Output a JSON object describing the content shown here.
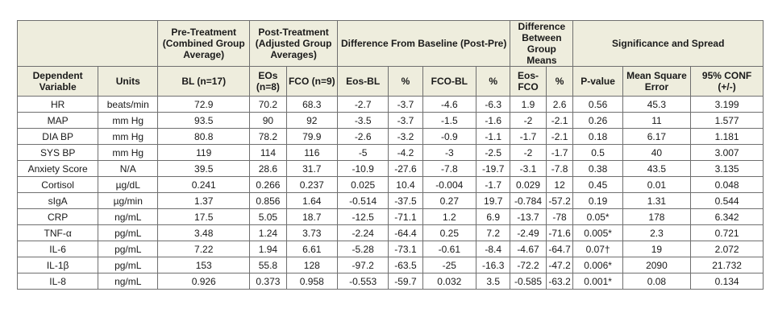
{
  "groups": {
    "pre": "Pre-Treatment (Combined Group Average)",
    "post": "Post-Treatment (Adjusted Group Averages)",
    "diff_baseline": "Difference From Baseline (Post-Pre)",
    "diff_groups": "Difference Between Group Means",
    "significance": "Significance and Spread"
  },
  "columns": {
    "variable": "Dependent Variable",
    "units": "Units",
    "bl": "BL  (n=17)",
    "eos": "EOs (n=8)",
    "fco": "FCO (n=9)",
    "eos_bl": "Eos-BL",
    "pct1": "%",
    "fco_bl": "FCO-BL",
    "pct2": "%",
    "eos_fco": "Eos-FCO",
    "pct3": "%",
    "pvalue": "P-value",
    "mse": "Mean Square Error",
    "conf": "95% CONF (+/-)"
  },
  "rows": [
    [
      "HR",
      "beats/min",
      "72.9",
      "70.2",
      "68.3",
      "-2.7",
      "-3.7",
      "-4.6",
      "-6.3",
      "1.9",
      "2.6",
      "0.56",
      "45.3",
      "3.199"
    ],
    [
      "MAP",
      "mm Hg",
      "93.5",
      "90",
      "92",
      "-3.5",
      "-3.7",
      "-1.5",
      "-1.6",
      "-2",
      "-2.1",
      "0.26",
      "11",
      "1.577"
    ],
    [
      "DIA BP",
      "mm Hg",
      "80.8",
      "78.2",
      "79.9",
      "-2.6",
      "-3.2",
      "-0.9",
      "-1.1",
      "-1.7",
      "-2.1",
      "0.18",
      "6.17",
      "1.181"
    ],
    [
      "SYS BP",
      "mm Hg",
      "119",
      "114",
      "116",
      "-5",
      "-4.2",
      "-3",
      "-2.5",
      "-2",
      "-1.7",
      "0.5",
      "40",
      "3.007"
    ],
    [
      "Anxiety Score",
      "N/A",
      "39.5",
      "28.6",
      "31.7",
      "-10.9",
      "-27.6",
      "-7.8",
      "-19.7",
      "-3.1",
      "-7.8",
      "0.38",
      "43.5",
      "3.135"
    ],
    [
      "Cortisol",
      "µg/dL",
      "0.241",
      "0.266",
      "0.237",
      "0.025",
      "10.4",
      "-0.004",
      "-1.7",
      "0.029",
      "12",
      "0.45",
      "0.01",
      "0.048"
    ],
    [
      "sIgA",
      "µg/min",
      "1.37",
      "0.856",
      "1.64",
      "-0.514",
      "-37.5",
      "0.27",
      "19.7",
      "-0.784",
      "-57.2",
      "0.19",
      "1.31",
      "0.544"
    ],
    [
      "CRP",
      "ng/mL",
      "17.5",
      "5.05",
      "18.7",
      "-12.5",
      "-71.1",
      "1.2",
      "6.9",
      "-13.7",
      "-78",
      "0.05*",
      "178",
      "6.342"
    ],
    [
      "TNF-α",
      "pg/mL",
      "3.48",
      "1.24",
      "3.73",
      "-2.24",
      "-64.4",
      "0.25",
      "7.2",
      "-2.49",
      "-71.6",
      "0.005*",
      "2.3",
      "0.721"
    ],
    [
      "IL-6",
      "pg/mL",
      "7.22",
      "1.94",
      "6.61",
      "-5.28",
      "-73.1",
      "-0.61",
      "-8.4",
      "-4.67",
      "-64.7",
      "0.07†",
      "19",
      "2.072"
    ],
    [
      "IL-1β",
      "pg/mL",
      "153",
      "55.8",
      "128",
      "-97.2",
      "-63.5",
      "-25",
      "-16.3",
      "-72.2",
      "-47.2",
      "0.006*",
      "2090",
      "21.732"
    ],
    [
      "IL-8",
      "ng/mL",
      "0.926",
      "0.373",
      "0.958",
      "-0.553",
      "-59.7",
      "0.032",
      "3.5",
      "-0.585",
      "-63.2",
      "0.001*",
      "0.08",
      "0.134"
    ]
  ]
}
